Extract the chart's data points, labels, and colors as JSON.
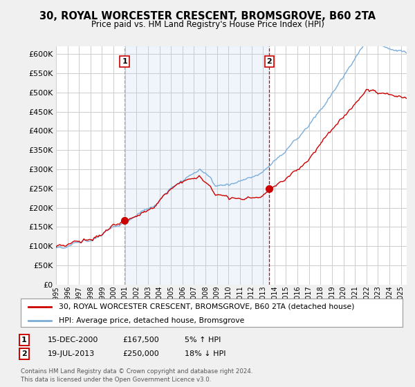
{
  "title": "30, ROYAL WORCESTER CRESCENT, BROMSGROVE, B60 2TA",
  "subtitle": "Price paid vs. HM Land Registry's House Price Index (HPI)",
  "ylim": [
    0,
    600000
  ],
  "yticks": [
    0,
    50000,
    100000,
    150000,
    200000,
    250000,
    300000,
    350000,
    400000,
    450000,
    500000,
    550000,
    600000
  ],
  "xlim_start": 1995.0,
  "xlim_end": 2025.5,
  "sale1_x": 2000.96,
  "sale1_y": 167500,
  "sale2_x": 2013.54,
  "sale2_y": 250000,
  "sale1_date": "15-DEC-2000",
  "sale1_price": "£167,500",
  "sale1_hpi": "5% ↑ HPI",
  "sale2_date": "19-JUL-2013",
  "sale2_price": "£250,000",
  "sale2_hpi": "18% ↓ HPI",
  "legend_property": "30, ROYAL WORCESTER CRESCENT, BROMSGROVE, B60 2TA (detached house)",
  "legend_hpi": "HPI: Average price, detached house, Bromsgrove",
  "footer": "Contains HM Land Registry data © Crown copyright and database right 2024.\nThis data is licensed under the Open Government Licence v3.0.",
  "property_color": "#cc0000",
  "hpi_color": "#7aadda",
  "shading_color": "#ddeeff",
  "background_color": "#f0f0f0",
  "plot_bg_color": "#ffffff",
  "grid_color": "#cccccc",
  "vline_color": "#999999",
  "vline2_color": "#cc0000"
}
